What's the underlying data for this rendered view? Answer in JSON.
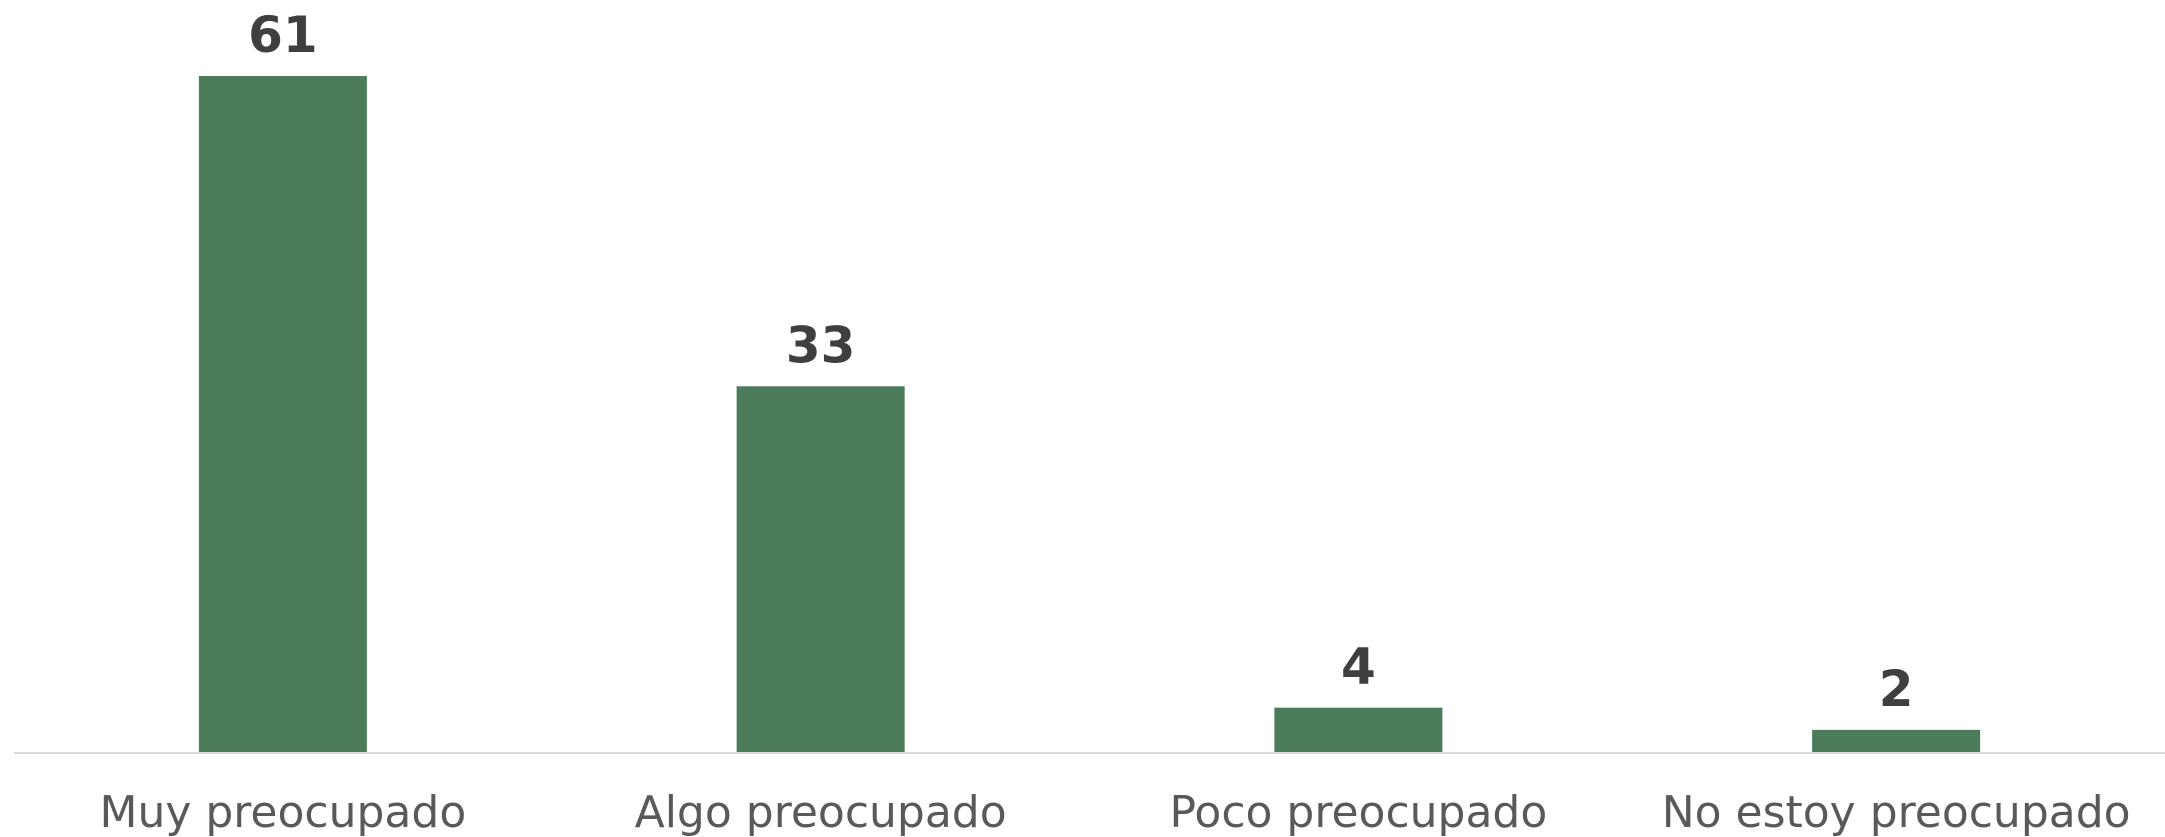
{
  "chart_data": {
    "type": "bar",
    "categories": [
      "Muy preocupado",
      "Algo preocupado",
      "Poco preocupado",
      "No estoy preocupado"
    ],
    "values": [
      61,
      33,
      4,
      2
    ],
    "data_labels": [
      "61",
      "33",
      "4",
      "2"
    ],
    "title": "",
    "xlabel": "",
    "ylabel": "",
    "ylim": [
      0,
      61
    ],
    "grid": false,
    "legend": "none",
    "bar_color": "#4a7c59",
    "axis_color": "#d9d9d9",
    "label_color": "#595959",
    "value_color": "#3f3f3f"
  }
}
